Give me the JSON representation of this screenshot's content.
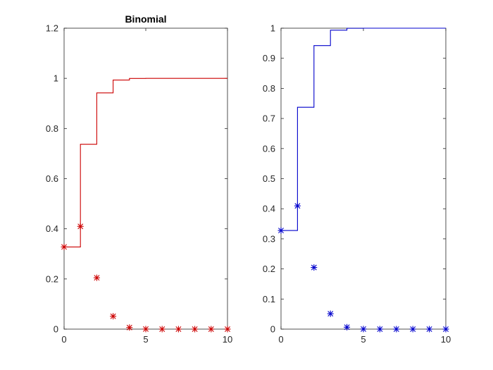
{
  "chart_data": [
    {
      "type": "scatter",
      "title": "Binomial",
      "xlabel": "",
      "ylabel": "",
      "xlim": [
        0,
        10
      ],
      "ylim": [
        0,
        1.2
      ],
      "x_ticks": [
        "0",
        "5",
        "10"
      ],
      "y_ticks": [
        "0",
        "0.2",
        "0.4",
        "0.6",
        "0.8",
        "1",
        "1.2"
      ],
      "grid": false,
      "x": [
        0,
        1,
        2,
        3,
        4,
        5,
        6,
        7,
        8,
        9,
        10
      ],
      "pmf": [
        0.3277,
        0.4096,
        0.2048,
        0.0512,
        0.0064,
        0.0003,
        0,
        0,
        0,
        0,
        0
      ],
      "cdf": [
        0.3277,
        0.7373,
        0.9421,
        0.9933,
        0.9997,
        1.0,
        1.0,
        1.0,
        1.0,
        1.0,
        1.0
      ],
      "pmf_marker": "asterisk",
      "cdf_style": "stairs",
      "color": "#cc0000"
    },
    {
      "type": "scatter",
      "title": "",
      "xlabel": "",
      "ylabel": "",
      "xlim": [
        0,
        10
      ],
      "ylim": [
        0,
        1
      ],
      "x_ticks": [
        "0",
        "5",
        "10"
      ],
      "y_ticks": [
        "0",
        "0.1",
        "0.2",
        "0.3",
        "0.4",
        "0.5",
        "0.6",
        "0.7",
        "0.8",
        "0.9",
        "1"
      ],
      "grid": false,
      "x": [
        0,
        1,
        2,
        3,
        4,
        5,
        6,
        7,
        8,
        9,
        10
      ],
      "pmf": [
        0.3277,
        0.4096,
        0.2048,
        0.0512,
        0.0064,
        0.0003,
        0,
        0,
        0,
        0,
        0
      ],
      "cdf": [
        0.3277,
        0.7373,
        0.9421,
        0.9933,
        0.9997,
        1.0,
        1.0,
        1.0,
        1.0,
        1.0,
        1.0
      ],
      "pmf_marker": "asterisk",
      "cdf_style": "stairs",
      "color": "#0000cc"
    }
  ]
}
